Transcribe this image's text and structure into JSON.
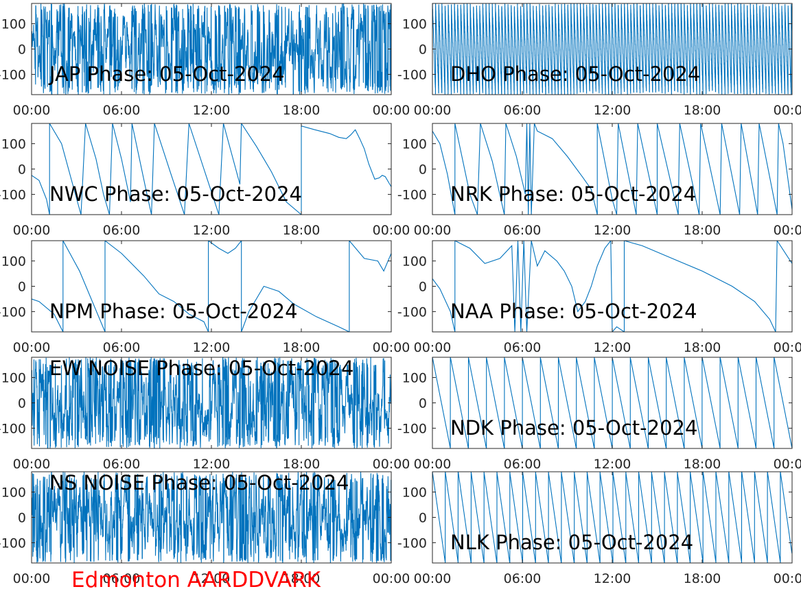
{
  "figure": {
    "footer": "Edmonton AARDDVARK",
    "footer_color": "#ff0000",
    "line_color": "#0072bd",
    "axis_color": "#262626"
  },
  "chart_data": [
    {
      "type": "line",
      "title": "JAP Phase: 05-Oct-2024",
      "pattern": "noise",
      "xlim": [
        "00:00",
        "24:00"
      ],
      "ylim": [
        -180,
        180
      ],
      "x_ticks": [
        "00:00",
        "06:00",
        "12:00",
        "18:00",
        "00:00"
      ],
      "y_ticks": [
        100,
        0,
        -100
      ],
      "y_tick_labels": [
        "100",
        "0",
        "-100"
      ],
      "series": [
        {
          "values": []
        }
      ]
    },
    {
      "type": "line",
      "title": "DHO Phase: 05-Oct-2024",
      "pattern": "fastwrap",
      "xlim": [
        "00:00",
        "24:00"
      ],
      "ylim": [
        -180,
        180
      ],
      "x_ticks": [
        "00:00",
        "06:00",
        "12:00",
        "18:00",
        "00:00"
      ],
      "y_ticks": [
        100,
        0,
        -100
      ],
      "y_tick_labels": [
        "100",
        "0",
        "-100"
      ],
      "series": [
        {
          "values": []
        }
      ]
    },
    {
      "type": "line",
      "title": "NWC Phase: 05-Oct-2024",
      "pattern": "keypoints",
      "xlim": [
        "00:00",
        "24:00"
      ],
      "ylim": [
        -180,
        180
      ],
      "x_ticks": [
        "00:00",
        "06:00",
        "12:00",
        "18:00",
        "00:00"
      ],
      "y_ticks": [
        100,
        0,
        -100
      ],
      "y_tick_labels": [
        "100",
        "0",
        "-100"
      ],
      "series": [
        {
          "values": [
            [
              0,
              -25
            ],
            [
              0.5,
              -45
            ],
            [
              1.0,
              -120
            ],
            [
              1.2,
              -180
            ],
            [
              1.2,
              180
            ],
            [
              2.0,
              100
            ],
            [
              2.6,
              -30
            ],
            [
              3.3,
              -180
            ],
            [
              3.6,
              180
            ],
            [
              4.3,
              40
            ],
            [
              4.8,
              -100
            ],
            [
              5.2,
              -180
            ],
            [
              5.4,
              180
            ],
            [
              6.0,
              40
            ],
            [
              6.6,
              -130
            ],
            [
              6.7,
              180
            ],
            [
              7.7,
              -100
            ],
            [
              8.0,
              -180
            ],
            [
              8.2,
              180
            ],
            [
              9.3,
              -20
            ],
            [
              10.2,
              -180
            ],
            [
              10.5,
              180
            ],
            [
              11.5,
              0
            ],
            [
              12.5,
              -180
            ],
            [
              12.8,
              180
            ],
            [
              13.9,
              -60
            ],
            [
              14.0,
              180
            ],
            [
              15.0,
              90
            ],
            [
              16.0,
              -10
            ],
            [
              17.0,
              -130
            ],
            [
              18.0,
              -180
            ],
            [
              18.0,
              170
            ],
            [
              18.9,
              155
            ],
            [
              19.9,
              140
            ],
            [
              20.5,
              125
            ],
            [
              21.0,
              120
            ],
            [
              21.3,
              135
            ],
            [
              21.6,
              155
            ],
            [
              21.9,
              120
            ],
            [
              22.2,
              80
            ],
            [
              22.5,
              20
            ],
            [
              22.9,
              -40
            ],
            [
              23.2,
              -35
            ],
            [
              23.4,
              -25
            ],
            [
              23.6,
              -30
            ],
            [
              24.0,
              -70
            ]
          ]
        }
      ]
    },
    {
      "type": "line",
      "title": "NRK Phase: 05-Oct-2024",
      "pattern": "keypoints",
      "xlim": [
        "00:00",
        "24:00"
      ],
      "ylim": [
        -180,
        180
      ],
      "x_ticks": [
        "00:00",
        "06:00",
        "12:00",
        "18:00",
        "00:00"
      ],
      "y_ticks": [
        100,
        0,
        -100
      ],
      "y_tick_labels": [
        "100",
        "0",
        "-100"
      ],
      "series": [
        {
          "values": [
            [
              0,
              150
            ],
            [
              0.5,
              100
            ],
            [
              1.0,
              -20
            ],
            [
              1.5,
              -180
            ],
            [
              1.5,
              180
            ],
            [
              2.5,
              -100
            ],
            [
              3.0,
              -180
            ],
            [
              3.2,
              180
            ],
            [
              4.0,
              30
            ],
            [
              4.8,
              -180
            ],
            [
              4.9,
              180
            ],
            [
              5.6,
              50
            ],
            [
              6.2,
              -100
            ],
            [
              6.3,
              180
            ],
            [
              6.4,
              -180
            ],
            [
              6.5,
              180
            ],
            [
              6.6,
              -180
            ],
            [
              6.8,
              180
            ],
            [
              7.0,
              150
            ],
            [
              8.0,
              120
            ],
            [
              9.0,
              50
            ],
            [
              10.0,
              -30
            ],
            [
              10.6,
              -80
            ],
            [
              11.0,
              -180
            ],
            [
              11.0,
              180
            ],
            [
              12.0,
              -120
            ],
            [
              12.3,
              -180
            ],
            [
              12.4,
              180
            ],
            [
              13.6,
              -180
            ],
            [
              13.7,
              180
            ],
            [
              15.0,
              -180
            ],
            [
              15.0,
              180
            ],
            [
              16.4,
              -180
            ],
            [
              16.5,
              180
            ],
            [
              17.8,
              -180
            ],
            [
              17.9,
              180
            ],
            [
              19.2,
              -180
            ],
            [
              19.3,
              180
            ],
            [
              20.5,
              -180
            ],
            [
              20.6,
              180
            ],
            [
              21.7,
              -180
            ],
            [
              21.8,
              180
            ],
            [
              23.0,
              -180
            ],
            [
              23.1,
              180
            ],
            [
              23.4,
              100
            ],
            [
              24.0,
              -160
            ]
          ]
        }
      ]
    },
    {
      "type": "line",
      "title": "NPM Phase: 05-Oct-2024",
      "pattern": "keypoints",
      "xlim": [
        "00:00",
        "24:00"
      ],
      "ylim": [
        -180,
        180
      ],
      "x_ticks": [
        "00:00",
        "06:00",
        "12:00",
        "18:00",
        "00:00"
      ],
      "y_ticks": [
        100,
        0,
        -100
      ],
      "y_tick_labels": [
        "100",
        "0",
        "-100"
      ],
      "series": [
        {
          "values": [
            [
              0,
              -50
            ],
            [
              0.5,
              -60
            ],
            [
              1.5,
              -110
            ],
            [
              2.1,
              -180
            ],
            [
              2.1,
              180
            ],
            [
              3.2,
              60
            ],
            [
              4.9,
              -180
            ],
            [
              4.9,
              180
            ],
            [
              6.0,
              130
            ],
            [
              7.5,
              40
            ],
            [
              8.5,
              -30
            ],
            [
              9.5,
              -60
            ],
            [
              10.5,
              -110
            ],
            [
              11.5,
              -140
            ],
            [
              11.8,
              -180
            ],
            [
              11.8,
              180
            ],
            [
              12.5,
              150
            ],
            [
              13.1,
              130
            ],
            [
              13.6,
              150
            ],
            [
              14.0,
              180
            ],
            [
              14.0,
              -180
            ],
            [
              14.5,
              -100
            ],
            [
              15.5,
              0
            ],
            [
              16.5,
              -20
            ],
            [
              17.5,
              -70
            ],
            [
              19.0,
              -120
            ],
            [
              20.5,
              -160
            ],
            [
              21.2,
              -180
            ],
            [
              21.2,
              180
            ],
            [
              22.2,
              110
            ],
            [
              23.1,
              100
            ],
            [
              23.5,
              60
            ],
            [
              24.0,
              130
            ]
          ]
        }
      ]
    },
    {
      "type": "line",
      "title": "NAA Phase: 05-Oct-2024",
      "pattern": "keypoints",
      "xlim": [
        "00:00",
        "24:00"
      ],
      "ylim": [
        -180,
        180
      ],
      "x_ticks": [
        "00:00",
        "06:00",
        "12:00",
        "18:00",
        "00:00"
      ],
      "y_ticks": [
        100,
        0,
        -100
      ],
      "y_tick_labels": [
        "100",
        "0",
        "-100"
      ],
      "series": [
        {
          "values": [
            [
              0,
              30
            ],
            [
              0.5,
              -10
            ],
            [
              1.2,
              -100
            ],
            [
              1.5,
              -180
            ],
            [
              1.5,
              180
            ],
            [
              2.5,
              150
            ],
            [
              3.5,
              90
            ],
            [
              4.5,
              110
            ],
            [
              5.3,
              160
            ],
            [
              5.5,
              -180
            ],
            [
              5.7,
              180
            ],
            [
              5.9,
              -180
            ],
            [
              6.1,
              180
            ],
            [
              6.3,
              -180
            ],
            [
              6.6,
              180
            ],
            [
              7.0,
              80
            ],
            [
              7.5,
              140
            ],
            [
              8.3,
              100
            ],
            [
              8.8,
              60
            ],
            [
              9.3,
              0
            ],
            [
              9.7,
              -100
            ],
            [
              10.2,
              -60
            ],
            [
              10.6,
              0
            ],
            [
              11.0,
              80
            ],
            [
              11.5,
              150
            ],
            [
              11.9,
              180
            ],
            [
              12.0,
              -180
            ],
            [
              12.3,
              -160
            ],
            [
              12.8,
              -180
            ],
            [
              12.8,
              180
            ],
            [
              14.0,
              160
            ],
            [
              16.0,
              110
            ],
            [
              18.0,
              60
            ],
            [
              20.0,
              0
            ],
            [
              21.5,
              -60
            ],
            [
              22.5,
              -130
            ],
            [
              22.9,
              -180
            ],
            [
              23.0,
              180
            ],
            [
              24.0,
              90
            ]
          ]
        }
      ]
    },
    {
      "type": "line",
      "title": "EW NOISE Phase: 05-Oct-2024",
      "pattern": "noise",
      "xlim": [
        "00:00",
        "24:00"
      ],
      "ylim": [
        -180,
        180
      ],
      "x_ticks": [
        "00:00",
        "06:00",
        "12:00",
        "18:00",
        "00:00"
      ],
      "y_ticks": [
        100,
        0,
        -100
      ],
      "y_tick_labels": [
        "100",
        "0",
        "-100"
      ],
      "series": [
        {
          "values": []
        }
      ]
    },
    {
      "type": "line",
      "title": "NDK Phase: 05-Oct-2024",
      "pattern": "sawtooth",
      "wrap_period_hours": 1.2,
      "xlim": [
        "00:00",
        "24:00"
      ],
      "ylim": [
        -180,
        180
      ],
      "x_ticks": [
        "00:00",
        "06:00",
        "12:00",
        "18:00",
        "00:00"
      ],
      "y_ticks": [
        100,
        0,
        -100
      ],
      "y_tick_labels": [
        "100",
        "0",
        "-100"
      ],
      "series": [
        {
          "values": []
        }
      ]
    },
    {
      "type": "line",
      "title": "NS NOISE Phase: 05-Oct-2024",
      "pattern": "noise",
      "xlim": [
        "00:00",
        "24:00"
      ],
      "ylim": [
        -180,
        180
      ],
      "x_ticks": [
        "00:00",
        "06:00",
        "12:00",
        "18:00",
        "00:00"
      ],
      "y_ticks": [
        100,
        0,
        -100
      ],
      "y_tick_labels": [
        "100",
        "0",
        "-100"
      ],
      "series": [
        {
          "values": []
        }
      ]
    },
    {
      "type": "line",
      "title": "NLK Phase: 05-Oct-2024",
      "pattern": "sawtooth",
      "wrap_period_hours": 0.86,
      "xlim": [
        "00:00",
        "24:00"
      ],
      "ylim": [
        -180,
        180
      ],
      "x_ticks": [
        "00:00",
        "06:00",
        "12:00",
        "18:00",
        "00:00"
      ],
      "y_ticks": [
        100,
        0,
        -100
      ],
      "y_tick_labels": [
        "100",
        "0",
        "-100"
      ],
      "series": [
        {
          "values": []
        }
      ]
    }
  ]
}
